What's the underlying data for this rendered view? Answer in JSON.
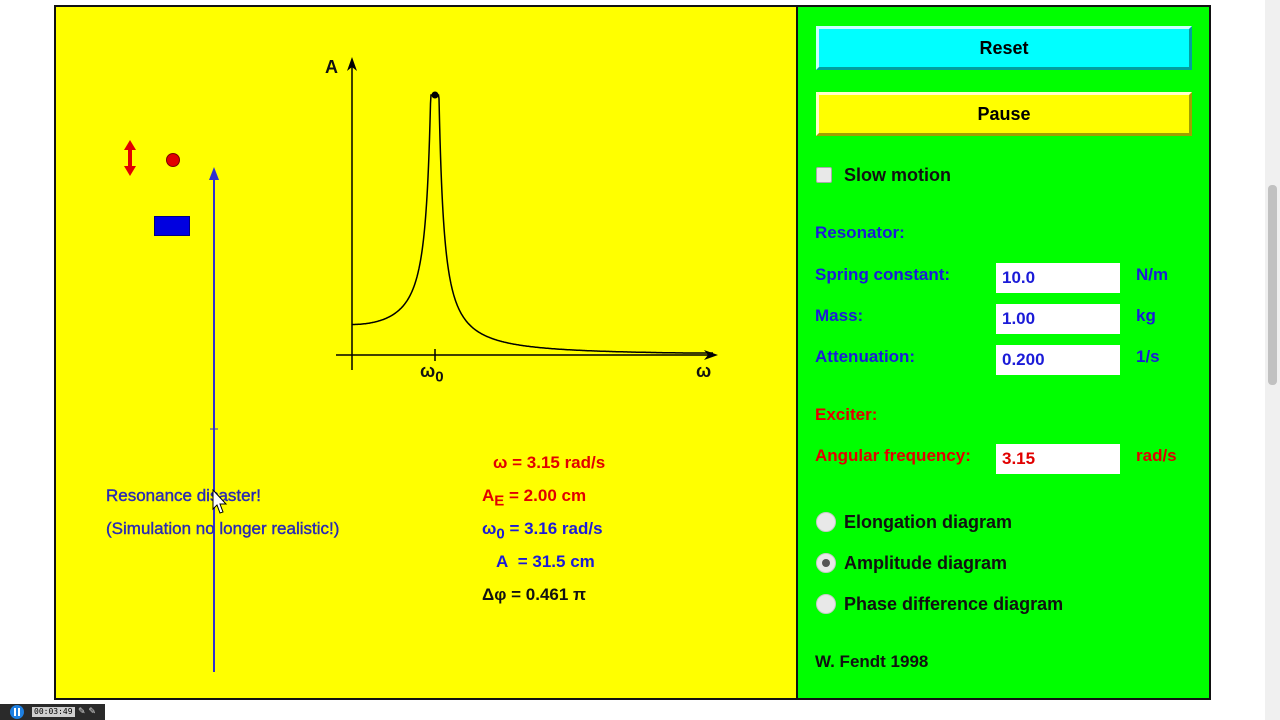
{
  "controls": {
    "reset_label": "Reset",
    "pause_label": "Pause",
    "slow_motion_label": "Slow motion",
    "slow_motion_checked": false
  },
  "resonator": {
    "heading": "Resonator:",
    "spring_constant_label": "Spring constant:",
    "spring_constant_value": "10.0",
    "spring_constant_unit": "N/m",
    "mass_label": "Mass:",
    "mass_value": "1.00",
    "mass_unit": "kg",
    "attenuation_label": "Attenuation:",
    "attenuation_value": "0.200",
    "attenuation_unit": "1/s"
  },
  "exciter": {
    "heading": "Exciter:",
    "angular_frequency_label": "Angular frequency:",
    "angular_frequency_value": "3.15",
    "angular_frequency_unit": "rad/s"
  },
  "diagram_options": {
    "elongation_label": "Elongation diagram",
    "amplitude_label": "Amplitude diagram",
    "phase_label": "Phase difference diagram",
    "selected": "amplitude"
  },
  "credit": "W. Fendt 1998",
  "simulation": {
    "message_line1": "Resonance disaster!",
    "message_line2": "(Simulation no longer realistic!)",
    "graph_y_label": "A",
    "graph_x_label": "ω",
    "graph_peak_label": "ω",
    "graph_peak_subscript": "0"
  },
  "readouts": {
    "omega_sym": "ω",
    "omega_val": "= 3.15 rad/s",
    "ae_sym": "A",
    "ae_sub": "E",
    "ae_val": "= 2.00 cm",
    "omega0_sym": "ω",
    "omega0_sub": "0",
    "omega0_val": "= 3.16 rad/s",
    "a_sym": "A",
    "a_val": "= 31.5 cm",
    "dphi_sym": "Δφ",
    "dphi_val": "= 0.461 π"
  },
  "taskbar": {
    "timer": "00:03:49"
  },
  "colors": {
    "sim_bg": "#ffff00",
    "panel_bg": "#00ff00",
    "reset_bg": "#00ffff",
    "label_blue": "#1b1bd8",
    "label_red": "#e10000"
  }
}
